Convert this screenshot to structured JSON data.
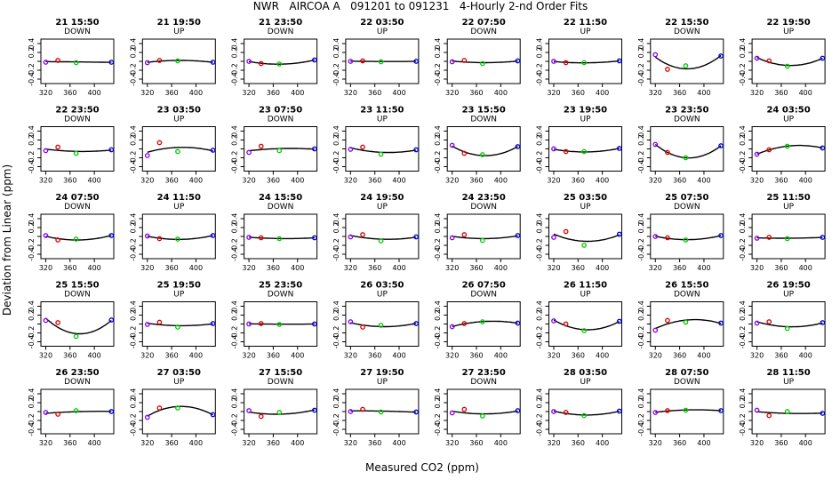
{
  "chart_data": {
    "type": "scatter",
    "title": "NWR   AIRCOA A   091201 to 091231   4-Hourly 2-nd Order Fits",
    "xlabel": "Measured CO2 (ppm)",
    "ylabel": "Deviation from Linear (ppm)",
    "xlim": [
      312,
      432
    ],
    "ylim": [
      -0.5,
      0.5
    ],
    "x_ticks": [
      320,
      360,
      400
    ],
    "y_ticks": [
      0.2,
      -0.2
    ],
    "y_ticks_unlabeled": [
      0.4,
      0.0,
      -0.4
    ],
    "y_tick_labels": [
      "0.4",
      "0.2",
      "-0.2",
      "-0.4"
    ],
    "grid": false,
    "standard_x": [
      320,
      340,
      370,
      428
    ],
    "point_colors": [
      "#8800ee",
      "#dd0000",
      "#00cc00",
      "#0000dd"
    ],
    "line_color": "#000000",
    "panels": [
      {
        "title": "21 15:50",
        "dir": "DOWN",
        "dev": [
          -0.02,
          0.02,
          -0.03,
          -0.02
        ]
      },
      {
        "title": "21 19:50",
        "dir": "UP",
        "dev": [
          -0.03,
          0.02,
          0.01,
          -0.02
        ]
      },
      {
        "title": "21 23:50",
        "dir": "DOWN",
        "dev": [
          0.0,
          -0.05,
          -0.06,
          0.03
        ]
      },
      {
        "title": "22 03:50",
        "dir": "UP",
        "dev": [
          0.0,
          0.01,
          -0.01,
          0.0
        ]
      },
      {
        "title": "22 07:50",
        "dir": "DOWN",
        "dev": [
          -0.01,
          0.02,
          -0.05,
          0.01
        ]
      },
      {
        "title": "22 11:50",
        "dir": "UP",
        "dev": [
          0.0,
          -0.03,
          -0.03,
          0.01
        ]
      },
      {
        "title": "22 15:50",
        "dir": "DOWN",
        "dev": [
          0.15,
          -0.18,
          -0.1,
          0.12
        ]
      },
      {
        "title": "22 19:50",
        "dir": "UP",
        "dev": [
          0.07,
          0.01,
          -0.11,
          0.07
        ]
      },
      {
        "title": "22 23:50",
        "dir": "DOWN",
        "dev": [
          -0.04,
          0.04,
          -0.1,
          -0.02
        ]
      },
      {
        "title": "23 03:50",
        "dir": "UP",
        "dev": [
          -0.15,
          0.14,
          -0.06,
          -0.03
        ]
      },
      {
        "title": "23 07:50",
        "dir": "DOWN",
        "dev": [
          -0.08,
          0.06,
          -0.04,
          0.0
        ]
      },
      {
        "title": "23 11:50",
        "dir": "UP",
        "dev": [
          -0.01,
          0.04,
          -0.12,
          -0.02
        ]
      },
      {
        "title": "23 15:50",
        "dir": "DOWN",
        "dev": [
          0.08,
          -0.1,
          -0.13,
          0.05
        ]
      },
      {
        "title": "23 19:50",
        "dir": "UP",
        "dev": [
          0.0,
          -0.06,
          -0.06,
          0.01
        ]
      },
      {
        "title": "23 23:50",
        "dir": "DOWN",
        "dev": [
          0.1,
          -0.08,
          -0.2,
          0.07
        ]
      },
      {
        "title": "24 03:50",
        "dir": "UP",
        "dev": [
          -0.12,
          -0.02,
          0.06,
          0.02
        ]
      },
      {
        "title": "24 07:50",
        "dir": "DOWN",
        "dev": [
          0.02,
          -0.08,
          -0.06,
          0.02
        ]
      },
      {
        "title": "24 11:50",
        "dir": "UP",
        "dev": [
          0.01,
          -0.05,
          -0.06,
          0.02
        ]
      },
      {
        "title": "24 15:50",
        "dir": "DOWN",
        "dev": [
          -0.02,
          -0.03,
          -0.05,
          -0.03
        ]
      },
      {
        "title": "24 19:50",
        "dir": "UP",
        "dev": [
          -0.01,
          0.04,
          -0.1,
          -0.01
        ]
      },
      {
        "title": "24 23:50",
        "dir": "DOWN",
        "dev": [
          -0.03,
          0.04,
          -0.09,
          0.02
        ]
      },
      {
        "title": "25 03:50",
        "dir": "UP",
        "dev": [
          -0.02,
          0.11,
          -0.2,
          0.05
        ]
      },
      {
        "title": "25 07:50",
        "dir": "DOWN",
        "dev": [
          0.0,
          -0.03,
          -0.08,
          0.02
        ]
      },
      {
        "title": "25 11:50",
        "dir": "UP",
        "dev": [
          -0.04,
          -0.02,
          -0.05,
          -0.02
        ]
      },
      {
        "title": "25 15:50",
        "dir": "DOWN",
        "dev": [
          0.08,
          0.03,
          -0.28,
          0.09
        ]
      },
      {
        "title": "25 19:50",
        "dir": "UP",
        "dev": [
          -0.01,
          0.04,
          -0.07,
          0.01
        ]
      },
      {
        "title": "25 23:50",
        "dir": "DOWN",
        "dev": [
          0.0,
          0.01,
          -0.01,
          0.0
        ]
      },
      {
        "title": "26 03:50",
        "dir": "UP",
        "dev": [
          0.05,
          -0.07,
          -0.03,
          0.01
        ]
      },
      {
        "title": "26 07:50",
        "dir": "DOWN",
        "dev": [
          -0.06,
          0.01,
          0.05,
          0.02
        ]
      },
      {
        "title": "26 11:50",
        "dir": "UP",
        "dev": [
          0.07,
          0.0,
          -0.15,
          0.06
        ]
      },
      {
        "title": "26 15:50",
        "dir": "DOWN",
        "dev": [
          -0.14,
          0.08,
          0.04,
          0.02
        ]
      },
      {
        "title": "26 19:50",
        "dir": "UP",
        "dev": [
          0.02,
          0.05,
          -0.1,
          0.03
        ]
      },
      {
        "title": "26 23:50",
        "dir": "DOWN",
        "dev": [
          -0.02,
          -0.06,
          0.02,
          0.0
        ]
      },
      {
        "title": "27 03:50",
        "dir": "UP",
        "dev": [
          -0.13,
          0.08,
          0.08,
          -0.07
        ]
      },
      {
        "title": "27 15:50",
        "dir": "DOWN",
        "dev": [
          0.02,
          -0.11,
          -0.02,
          0.03
        ]
      },
      {
        "title": "27 19:50",
        "dir": "UP",
        "dev": [
          0.0,
          0.05,
          -0.01,
          -0.01
        ]
      },
      {
        "title": "27 23:50",
        "dir": "DOWN",
        "dev": [
          -0.03,
          0.05,
          -0.1,
          0.02
        ]
      },
      {
        "title": "28 03:50",
        "dir": "UP",
        "dev": [
          0.0,
          -0.02,
          -0.09,
          0.01
        ]
      },
      {
        "title": "28 07:50",
        "dir": "DOWN",
        "dev": [
          -0.02,
          0.02,
          0.03,
          0.02
        ]
      },
      {
        "title": "28 11:50",
        "dir": "UP",
        "dev": [
          0.03,
          -0.09,
          0.0,
          -0.04
        ]
      }
    ]
  }
}
